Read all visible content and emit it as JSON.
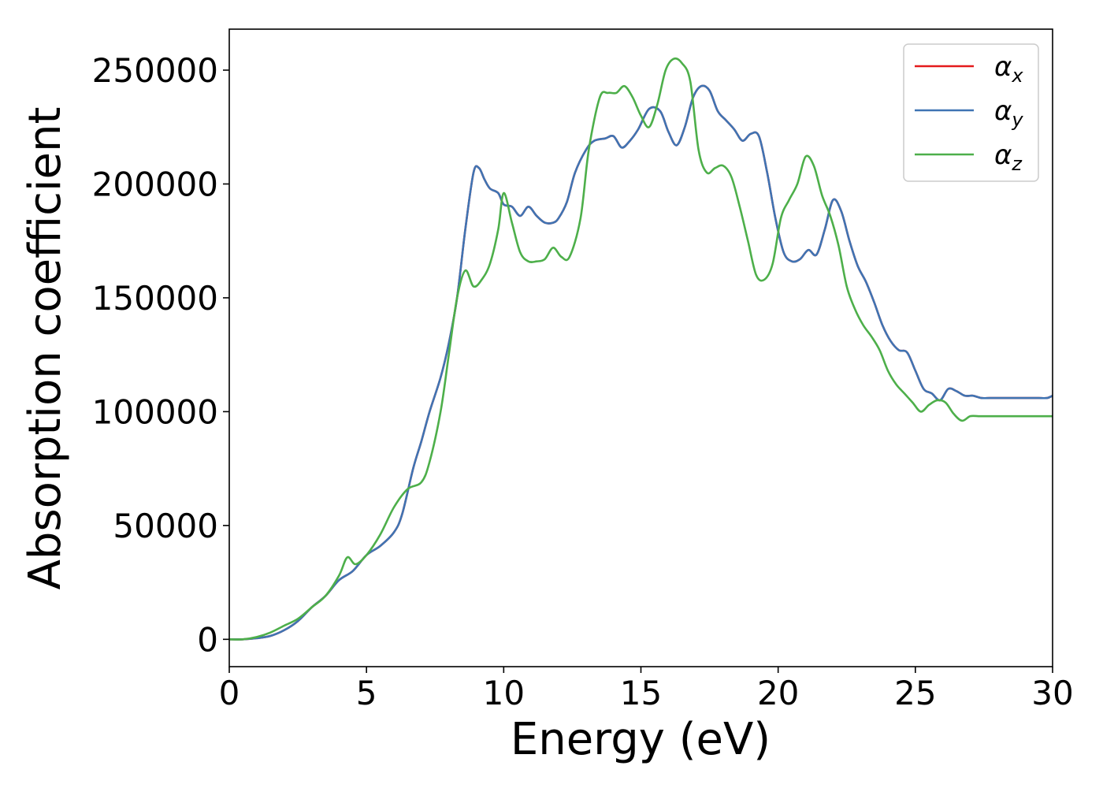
{
  "chart_data": {
    "type": "line",
    "title": "",
    "xlabel": "Energy (eV)",
    "ylabel": "Absorption coefficient",
    "xlim": [
      0,
      30
    ],
    "ylim": [
      -12000,
      268000
    ],
    "xticks": [
      0,
      5,
      10,
      15,
      20,
      25,
      30
    ],
    "xtick_labels": [
      "0",
      "5",
      "10",
      "15",
      "20",
      "25",
      "30"
    ],
    "yticks": [
      0,
      50000,
      100000,
      150000,
      200000,
      250000
    ],
    "ytick_labels": [
      "0",
      "50000",
      "100000",
      "150000",
      "200000",
      "250000"
    ],
    "grid": false,
    "legend_position": "top-right",
    "series": [
      {
        "name": "α",
        "subscript": "x",
        "color": "#e41a1c",
        "x": [
          0,
          0.5,
          1,
          1.5,
          2,
          2.5,
          3,
          3.5,
          4,
          4.5,
          5,
          5.5,
          6,
          6.3,
          6.7,
          7,
          7.3,
          7.7,
          8,
          8.3,
          8.6,
          8.9,
          9.1,
          9.3,
          9.5,
          9.8,
          10,
          10.3,
          10.6,
          10.9,
          11.2,
          11.5,
          11.8,
          12,
          12.3,
          12.6,
          13,
          13.3,
          13.7,
          14,
          14.3,
          14.6,
          14.9,
          15.3,
          15.7,
          16,
          16.3,
          16.6,
          16.9,
          17.2,
          17.5,
          17.8,
          18.1,
          18.4,
          18.7,
          19,
          19.3,
          19.6,
          19.9,
          20.2,
          20.5,
          20.8,
          21.1,
          21.4,
          21.7,
          22,
          22.3,
          22.6,
          22.9,
          23.2,
          23.5,
          23.8,
          24.1,
          24.4,
          24.7,
          25,
          25.3,
          25.6,
          25.9,
          26.2,
          26.5,
          26.8,
          27.1,
          27.4,
          27.7,
          28,
          28.3,
          28.6,
          28.9,
          29.2,
          29.5,
          29.8,
          30
        ],
        "y": [
          0,
          0,
          500,
          1500,
          4000,
          8000,
          14000,
          19000,
          26000,
          30000,
          37000,
          41000,
          47000,
          55000,
          75000,
          87000,
          100000,
          115000,
          130000,
          150000,
          180000,
          205000,
          207000,
          202000,
          198000,
          196000,
          191000,
          190000,
          186000,
          190000,
          186000,
          183000,
          183000,
          185000,
          192000,
          205000,
          215000,
          219000,
          220000,
          221000,
          216000,
          219000,
          224000,
          233000,
          232000,
          223000,
          217000,
          225000,
          238000,
          243000,
          241000,
          232000,
          228000,
          224000,
          219000,
          222000,
          221000,
          205000,
          185000,
          170000,
          166000,
          167000,
          171000,
          169000,
          180000,
          193000,
          188000,
          175000,
          164000,
          157000,
          148000,
          138000,
          131000,
          127000,
          126000,
          118000,
          110000,
          108000,
          105000,
          110000,
          109000,
          107000,
          107000,
          106000,
          106000,
          106000,
          106000,
          106000,
          106000,
          106000,
          106000,
          106000,
          107000
        ]
      },
      {
        "name": "α",
        "subscript": "y",
        "color": "#3f74b3",
        "x": [
          0,
          0.5,
          1,
          1.5,
          2,
          2.5,
          3,
          3.5,
          4,
          4.5,
          5,
          5.5,
          6,
          6.3,
          6.7,
          7,
          7.3,
          7.7,
          8,
          8.3,
          8.6,
          8.9,
          9.1,
          9.3,
          9.5,
          9.8,
          10,
          10.3,
          10.6,
          10.9,
          11.2,
          11.5,
          11.8,
          12,
          12.3,
          12.6,
          13,
          13.3,
          13.7,
          14,
          14.3,
          14.6,
          14.9,
          15.3,
          15.7,
          16,
          16.3,
          16.6,
          16.9,
          17.2,
          17.5,
          17.8,
          18.1,
          18.4,
          18.7,
          19,
          19.3,
          19.6,
          19.9,
          20.2,
          20.5,
          20.8,
          21.1,
          21.4,
          21.7,
          22,
          22.3,
          22.6,
          22.9,
          23.2,
          23.5,
          23.8,
          24.1,
          24.4,
          24.7,
          25,
          25.3,
          25.6,
          25.9,
          26.2,
          26.5,
          26.8,
          27.1,
          27.4,
          27.7,
          28,
          28.3,
          28.6,
          28.9,
          29.2,
          29.5,
          29.8,
          30
        ],
        "y": [
          0,
          0,
          500,
          1500,
          4000,
          8000,
          14000,
          19000,
          26000,
          30000,
          37000,
          41000,
          47000,
          55000,
          75000,
          87000,
          100000,
          115000,
          130000,
          150000,
          180000,
          205000,
          207000,
          202000,
          198000,
          196000,
          191000,
          190000,
          186000,
          190000,
          186000,
          183000,
          183000,
          185000,
          192000,
          205000,
          215000,
          219000,
          220000,
          221000,
          216000,
          219000,
          224000,
          233000,
          232000,
          223000,
          217000,
          225000,
          238000,
          243000,
          241000,
          232000,
          228000,
          224000,
          219000,
          222000,
          221000,
          205000,
          185000,
          170000,
          166000,
          167000,
          171000,
          169000,
          180000,
          193000,
          188000,
          175000,
          164000,
          157000,
          148000,
          138000,
          131000,
          127000,
          126000,
          118000,
          110000,
          108000,
          105000,
          110000,
          109000,
          107000,
          107000,
          106000,
          106000,
          106000,
          106000,
          106000,
          106000,
          106000,
          106000,
          106000,
          107000
        ]
      },
      {
        "name": "α",
        "subscript": "z",
        "color": "#4daf4a",
        "x": [
          0,
          0.5,
          1,
          1.5,
          2,
          2.5,
          3,
          3.5,
          4,
          4.3,
          4.6,
          5,
          5.5,
          6,
          6.5,
          7,
          7.3,
          7.7,
          8,
          8.3,
          8.6,
          8.9,
          9.2,
          9.5,
          9.8,
          10,
          10.3,
          10.6,
          10.9,
          11.2,
          11.5,
          11.8,
          12.1,
          12.4,
          12.8,
          13.1,
          13.5,
          13.8,
          14.1,
          14.4,
          14.7,
          15,
          15.3,
          15.6,
          15.9,
          16.2,
          16.5,
          16.8,
          17.1,
          17.4,
          17.7,
          18,
          18.3,
          18.6,
          18.9,
          19.2,
          19.5,
          19.8,
          20.1,
          20.4,
          20.7,
          21,
          21.3,
          21.6,
          21.9,
          22.2,
          22.5,
          22.8,
          23.1,
          23.4,
          23.7,
          24,
          24.3,
          24.6,
          24.9,
          25.2,
          25.5,
          25.8,
          26.1,
          26.4,
          26.7,
          27,
          27.3,
          27.6,
          27.9,
          28.2,
          28.5,
          28.8,
          29.1,
          29.4,
          29.7,
          30
        ],
        "y": [
          0,
          0,
          1000,
          3000,
          6000,
          9000,
          14000,
          19000,
          28000,
          36000,
          33000,
          37000,
          46000,
          58000,
          66000,
          69000,
          78000,
          100000,
          125000,
          150000,
          162000,
          155000,
          158000,
          165000,
          180000,
          196000,
          183000,
          170000,
          166000,
          166000,
          167000,
          172000,
          168000,
          168000,
          185000,
          215000,
          238000,
          240000,
          240000,
          243000,
          238000,
          230000,
          225000,
          235000,
          250000,
          255000,
          253000,
          245000,
          215000,
          205000,
          207000,
          208000,
          203000,
          190000,
          175000,
          160000,
          158000,
          165000,
          185000,
          193000,
          200000,
          212000,
          208000,
          195000,
          186000,
          173000,
          155000,
          145000,
          138000,
          133000,
          127000,
          118000,
          112000,
          108000,
          104000,
          100000,
          103000,
          105000,
          104000,
          99000,
          96000,
          98000,
          98000,
          98000,
          98000,
          98000,
          98000,
          98000,
          98000,
          98000,
          98000,
          98000
        ]
      }
    ]
  }
}
